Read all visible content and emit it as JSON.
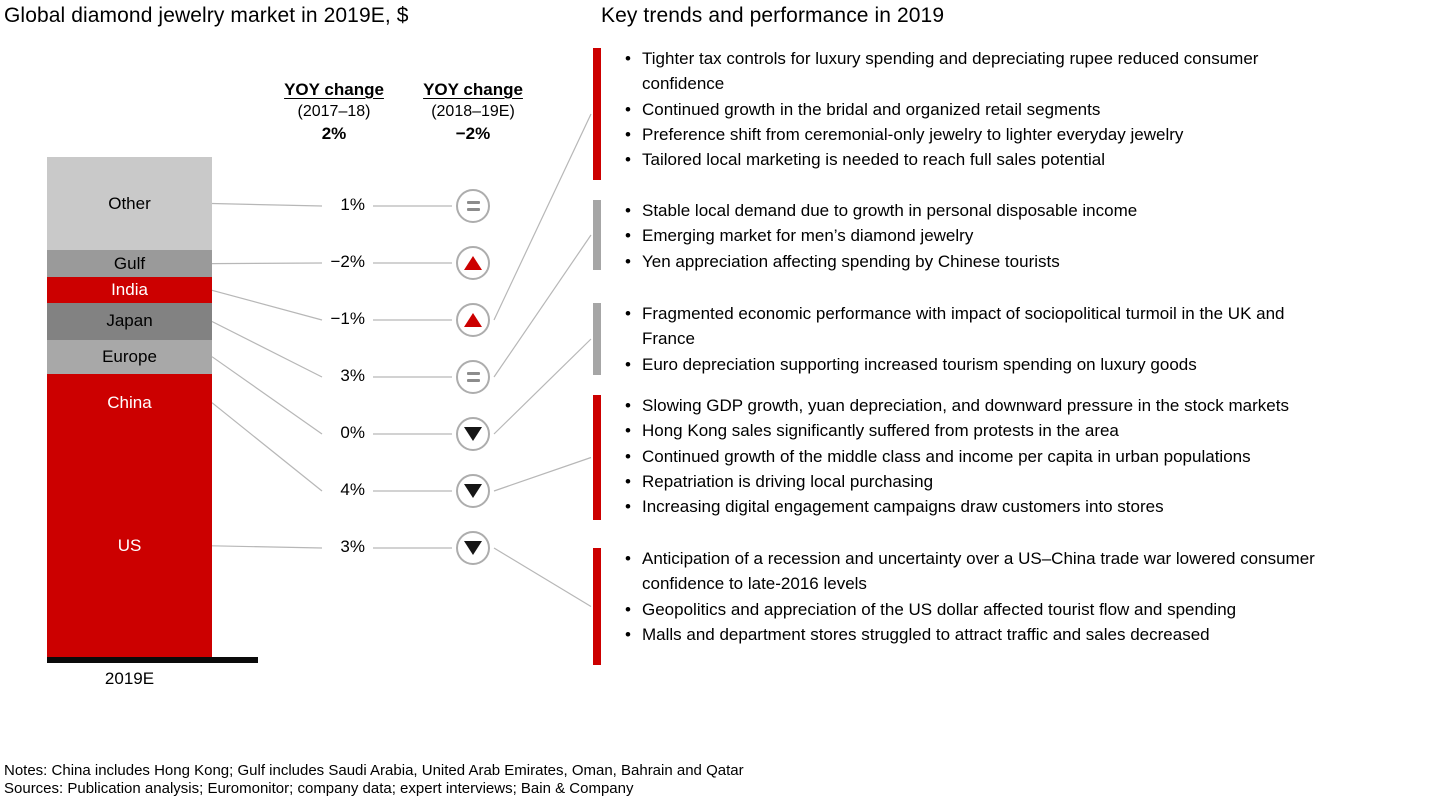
{
  "page": {
    "left_title": "Global diamond jewelry market in 2019E, $",
    "right_title": "Key trends and performance in 2019",
    "axis_label": "2019E",
    "notes": "Notes: China includes Hong Kong; Gulf includes Saudi Arabia, United Arab Emirates, Oman, Bahrain and Qatar",
    "sources": "Sources: Publication analysis; Euromonitor; company data; expert interviews; Bain & Company"
  },
  "yoy_columns": [
    {
      "header": "YOY change",
      "period": "(2017–18)",
      "total": "2%"
    },
    {
      "header": "YOY change",
      "period": "(2018–19E)",
      "total": "−2%"
    }
  ],
  "chart_data": {
    "type": "bar",
    "stacked": true,
    "title": "Global diamond jewelry market in 2019E, $",
    "categories": [
      "2019E"
    ],
    "value_axis": "share of market (no numeric axis shown; shares estimated from segment heights)",
    "totals": {
      "yoy_2017_18": "2%",
      "yoy_2018_19e": "−2%"
    },
    "segments": [
      {
        "label": "Other",
        "share_pct_est": 18.5,
        "color": "#c9c9c9",
        "text_color": "#000000",
        "yoy_2017_18": "1%",
        "yoy_2018_19e_trend": "flat"
      },
      {
        "label": "Gulf",
        "share_pct_est": 5.4,
        "color": "#9a9a9a",
        "text_color": "#000000",
        "yoy_2017_18": "−2%",
        "yoy_2018_19e_trend": "up"
      },
      {
        "label": "India",
        "share_pct_est": 5.2,
        "color": "#cc0000",
        "text_color": "#ffffff",
        "yoy_2017_18": "−1%",
        "yoy_2018_19e_trend": "up"
      },
      {
        "label": "Japan",
        "share_pct_est": 7.2,
        "color": "#828282",
        "text_color": "#000000",
        "yoy_2017_18": "3%",
        "yoy_2018_19e_trend": "flat"
      },
      {
        "label": "Europe",
        "share_pct_est": 6.8,
        "color": "#a8a8a8",
        "text_color": "#000000",
        "yoy_2017_18": "0%",
        "yoy_2018_19e_trend": "down"
      },
      {
        "label": "China",
        "share_pct_est": 11.5,
        "color": "#cc0000",
        "text_color": "#ffffff",
        "yoy_2017_18": "4%",
        "yoy_2018_19e_trend": "down"
      },
      {
        "label": "US",
        "share_pct_est": 45.4,
        "color": "#cc0000",
        "text_color": "#ffffff",
        "yoy_2017_18": "3%",
        "yoy_2018_19e_trend": "down"
      }
    ]
  },
  "trend_blocks": [
    {
      "region": "India",
      "accent_color": "#cc0000",
      "bullets": [
        "Tighter tax controls for luxury spending and depreciating rupee reduced consumer confidence",
        "Continued growth in the bridal and organized retail segments",
        "Preference shift from ceremonial-only jewelry to lighter everyday jewelry",
        "Tailored local marketing is needed to reach full sales potential"
      ]
    },
    {
      "region": "Japan",
      "accent_color": "#a6a6a6",
      "bullets": [
        "Stable local demand due to growth in personal disposable income",
        "Emerging market for men’s diamond jewelry",
        "Yen appreciation affecting spending by Chinese tourists"
      ]
    },
    {
      "region": "Europe",
      "accent_color": "#a6a6a6",
      "bullets": [
        "Fragmented economic performance with impact of sociopolitical turmoil in the UK and France",
        "Euro depreciation supporting increased tourism spending on luxury goods"
      ]
    },
    {
      "region": "China",
      "accent_color": "#cc0000",
      "bullets": [
        "Slowing GDP growth, yuan depreciation, and downward pressure in the stock markets",
        "Hong Kong sales significantly suffered from protests in the area",
        "Continued growth of the middle class and income per capita in urban populations",
        "Repatriation is driving local purchasing",
        "Increasing digital engagement campaigns draw customers into stores"
      ]
    },
    {
      "region": "US",
      "accent_color": "#cc0000",
      "bullets": [
        "Anticipation of a recession and uncertainty over a US–China trade war lowered consumer confidence to late-2016 levels",
        "Geopolitics and appreciation of the US dollar affected tourist flow and spending",
        "Malls and department stores struggled to attract traffic and sales decreased"
      ]
    }
  ],
  "colors": {
    "brand_red": "#cc0000",
    "connector_gray": "#b7b7b7",
    "baseline_black": "#0a0a0a"
  }
}
